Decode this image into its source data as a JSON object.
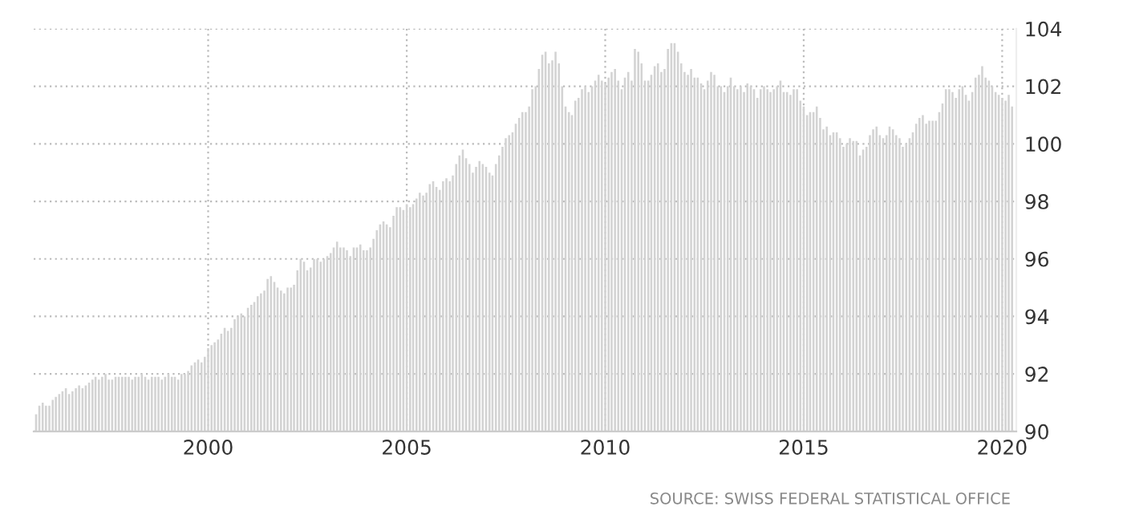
{
  "chart_data": {
    "type": "bar",
    "x": [
      "1995-09",
      "1995-10",
      "1995-11",
      "1995-12",
      "1996-01",
      "1996-02",
      "1996-03",
      "1996-04",
      "1996-05",
      "1996-06",
      "1996-07",
      "1996-08",
      "1996-09",
      "1996-10",
      "1996-11",
      "1996-12",
      "1997-01",
      "1997-02",
      "1997-03",
      "1997-04",
      "1997-05",
      "1997-06",
      "1997-07",
      "1997-08",
      "1997-09",
      "1997-10",
      "1997-11",
      "1997-12",
      "1998-01",
      "1998-02",
      "1998-03",
      "1998-04",
      "1998-05",
      "1998-06",
      "1998-07",
      "1998-08",
      "1998-09",
      "1998-10",
      "1998-11",
      "1998-12",
      "1999-01",
      "1999-02",
      "1999-03",
      "1999-04",
      "1999-05",
      "1999-06",
      "1999-07",
      "1999-08",
      "1999-09",
      "1999-10",
      "1999-11",
      "1999-12",
      "2000-01",
      "2000-02",
      "2000-03",
      "2000-04",
      "2000-05",
      "2000-06",
      "2000-07",
      "2000-08",
      "2000-09",
      "2000-10",
      "2000-11",
      "2000-12",
      "2001-01",
      "2001-02",
      "2001-03",
      "2001-04",
      "2001-05",
      "2001-06",
      "2001-07",
      "2001-08",
      "2001-09",
      "2001-10",
      "2001-11",
      "2001-12",
      "2002-01",
      "2002-02",
      "2002-03",
      "2002-04",
      "2002-05",
      "2002-06",
      "2002-07",
      "2002-08",
      "2002-09",
      "2002-10",
      "2002-11",
      "2002-12",
      "2003-01",
      "2003-02",
      "2003-03",
      "2003-04",
      "2003-05",
      "2003-06",
      "2003-07",
      "2003-08",
      "2003-09",
      "2003-10",
      "2003-11",
      "2003-12",
      "2004-01",
      "2004-02",
      "2004-03",
      "2004-04",
      "2004-05",
      "2004-06",
      "2004-07",
      "2004-08",
      "2004-09",
      "2004-10",
      "2004-11",
      "2004-12",
      "2005-01",
      "2005-02",
      "2005-03",
      "2005-04",
      "2005-05",
      "2005-06",
      "2005-07",
      "2005-08",
      "2005-09",
      "2005-10",
      "2005-11",
      "2005-12",
      "2006-01",
      "2006-02",
      "2006-03",
      "2006-04",
      "2006-05",
      "2006-06",
      "2006-07",
      "2006-08",
      "2006-09",
      "2006-10",
      "2006-11",
      "2006-12",
      "2007-01",
      "2007-02",
      "2007-03",
      "2007-04",
      "2007-05",
      "2007-06",
      "2007-07",
      "2007-08",
      "2007-09",
      "2007-10",
      "2007-11",
      "2007-12",
      "2008-01",
      "2008-02",
      "2008-03",
      "2008-04",
      "2008-05",
      "2008-06",
      "2008-07",
      "2008-08",
      "2008-09",
      "2008-10",
      "2008-11",
      "2008-12",
      "2009-01",
      "2009-02",
      "2009-03",
      "2009-04",
      "2009-05",
      "2009-06",
      "2009-07",
      "2009-08",
      "2009-09",
      "2009-10",
      "2009-11",
      "2009-12",
      "2010-01",
      "2010-02",
      "2010-03",
      "2010-04",
      "2010-05",
      "2010-06",
      "2010-07",
      "2010-08",
      "2010-09",
      "2010-10",
      "2010-11",
      "2010-12",
      "2011-01",
      "2011-02",
      "2011-03",
      "2011-04",
      "2011-05",
      "2011-06",
      "2011-07",
      "2011-08",
      "2011-09",
      "2011-10",
      "2011-11",
      "2011-12",
      "2012-01",
      "2012-02",
      "2012-03",
      "2012-04",
      "2012-05",
      "2012-06",
      "2012-07",
      "2012-08",
      "2012-09",
      "2012-10",
      "2012-11",
      "2012-12",
      "2013-01",
      "2013-02",
      "2013-03",
      "2013-04",
      "2013-05",
      "2013-06",
      "2013-07",
      "2013-08",
      "2013-09",
      "2013-10",
      "2013-11",
      "2013-12",
      "2014-01",
      "2014-02",
      "2014-03",
      "2014-04",
      "2014-05",
      "2014-06",
      "2014-07",
      "2014-08",
      "2014-09",
      "2014-10",
      "2014-11",
      "2014-12",
      "2015-01",
      "2015-02",
      "2015-03",
      "2015-04",
      "2015-05",
      "2015-06",
      "2015-07",
      "2015-08",
      "2015-09",
      "2015-10",
      "2015-11",
      "2015-12",
      "2016-01",
      "2016-02",
      "2016-03",
      "2016-04",
      "2016-05",
      "2016-06",
      "2016-07",
      "2016-08",
      "2016-09",
      "2016-10",
      "2016-11",
      "2016-12",
      "2017-01",
      "2017-02",
      "2017-03",
      "2017-04",
      "2017-05",
      "2017-06",
      "2017-07",
      "2017-08",
      "2017-09",
      "2017-10",
      "2017-11",
      "2017-12",
      "2018-01",
      "2018-02",
      "2018-03",
      "2018-04",
      "2018-05",
      "2018-06",
      "2018-07",
      "2018-08",
      "2018-09",
      "2018-10",
      "2018-11",
      "2018-12",
      "2019-01",
      "2019-02",
      "2019-03",
      "2019-04",
      "2019-05",
      "2019-06",
      "2019-07",
      "2019-08",
      "2019-09",
      "2019-10",
      "2019-11",
      "2019-12",
      "2020-01",
      "2020-02",
      "2020-03",
      "2020-04"
    ],
    "values": [
      90.6,
      90.9,
      91.0,
      90.9,
      90.9,
      91.1,
      91.2,
      91.3,
      91.4,
      91.5,
      91.3,
      91.4,
      91.5,
      91.6,
      91.5,
      91.6,
      91.7,
      91.8,
      91.9,
      91.8,
      91.9,
      92.0,
      91.8,
      91.8,
      91.9,
      91.9,
      91.9,
      91.9,
      91.9,
      91.8,
      91.9,
      91.9,
      92.0,
      91.9,
      91.8,
      91.9,
      91.9,
      91.9,
      91.8,
      91.9,
      92.0,
      91.9,
      91.9,
      91.8,
      92.0,
      92.0,
      92.1,
      92.3,
      92.4,
      92.5,
      92.4,
      92.6,
      92.9,
      93.0,
      93.1,
      93.2,
      93.4,
      93.6,
      93.5,
      93.6,
      93.9,
      94.0,
      94.1,
      94.0,
      94.3,
      94.4,
      94.5,
      94.7,
      94.8,
      94.9,
      95.3,
      95.4,
      95.2,
      95.0,
      94.9,
      94.8,
      95.0,
      95.0,
      95.1,
      95.6,
      96.0,
      95.9,
      95.6,
      95.7,
      96.0,
      96.0,
      95.9,
      96.0,
      96.1,
      96.2,
      96.4,
      96.6,
      96.4,
      96.4,
      96.3,
      96.1,
      96.4,
      96.4,
      96.5,
      96.3,
      96.3,
      96.4,
      96.7,
      97.0,
      97.2,
      97.3,
      97.2,
      97.1,
      97.5,
      97.8,
      97.8,
      97.7,
      97.9,
      97.8,
      97.9,
      98.1,
      98.3,
      98.2,
      98.3,
      98.6,
      98.7,
      98.5,
      98.4,
      98.7,
      98.8,
      98.7,
      98.9,
      99.3,
      99.6,
      99.8,
      99.5,
      99.3,
      99.0,
      99.2,
      99.4,
      99.3,
      99.2,
      99.0,
      98.9,
      99.3,
      99.6,
      99.9,
      100.2,
      100.3,
      100.4,
      100.7,
      100.9,
      101.1,
      101.1,
      101.3,
      101.9,
      102.0,
      102.6,
      103.1,
      103.2,
      102.8,
      102.9,
      103.2,
      102.8,
      102.0,
      101.3,
      101.1,
      101.0,
      101.5,
      101.6,
      101.9,
      102.0,
      101.8,
      102.0,
      102.2,
      102.4,
      102.2,
      102.1,
      102.3,
      102.5,
      102.6,
      102.2,
      101.9,
      102.3,
      102.5,
      102.2,
      103.3,
      103.2,
      102.8,
      102.2,
      102.2,
      102.4,
      102.7,
      102.8,
      102.5,
      102.6,
      103.3,
      103.5,
      103.5,
      103.2,
      102.8,
      102.5,
      102.4,
      102.6,
      102.3,
      102.3,
      102.1,
      101.9,
      102.2,
      102.5,
      102.4,
      102.0,
      102.0,
      101.8,
      102.0,
      102.3,
      102.0,
      101.9,
      102.0,
      101.8,
      102.1,
      102.0,
      101.9,
      101.6,
      101.9,
      102.0,
      101.9,
      101.8,
      101.9,
      102.0,
      102.2,
      101.8,
      101.8,
      101.7,
      101.9,
      101.9,
      101.5,
      101.3,
      101.0,
      101.1,
      101.1,
      101.3,
      100.9,
      100.5,
      100.6,
      100.3,
      100.4,
      100.4,
      100.2,
      99.9,
      100.0,
      100.2,
      100.1,
      100.1,
      99.6,
      99.8,
      99.9,
      100.3,
      100.5,
      100.6,
      100.3,
      100.2,
      100.3,
      100.6,
      100.5,
      100.3,
      100.2,
      99.9,
      100.0,
      100.2,
      100.4,
      100.7,
      100.9,
      101.0,
      100.7,
      100.8,
      100.8,
      100.8,
      101.1,
      101.4,
      101.9,
      101.9,
      101.8,
      101.6,
      101.9,
      102.0,
      101.7,
      101.5,
      101.8,
      102.3,
      102.4,
      102.7,
      102.3,
      102.2,
      102.0,
      101.8,
      101.7,
      101.6,
      101.5,
      101.7,
      101.3
    ],
    "color": "#d3d3d3",
    "xlim": [
      "1995-08-10",
      "2020-05-10"
    ],
    "xticks": [
      {
        "value": "2000-01-01",
        "label": "2000"
      },
      {
        "value": "2005-01-01",
        "label": "2005"
      },
      {
        "value": "2010-01-01",
        "label": "2010"
      },
      {
        "value": "2015-01-01",
        "label": "2015"
      },
      {
        "value": "2020-01-01",
        "label": "2020"
      }
    ],
    "ylim": [
      90,
      104
    ],
    "yticks": [
      90,
      92,
      94,
      96,
      98,
      100,
      102,
      104
    ],
    "grid": true,
    "annotations": [
      "SOURCE: SWISS FEDERAL STATISTICAL OFFICE"
    ]
  }
}
